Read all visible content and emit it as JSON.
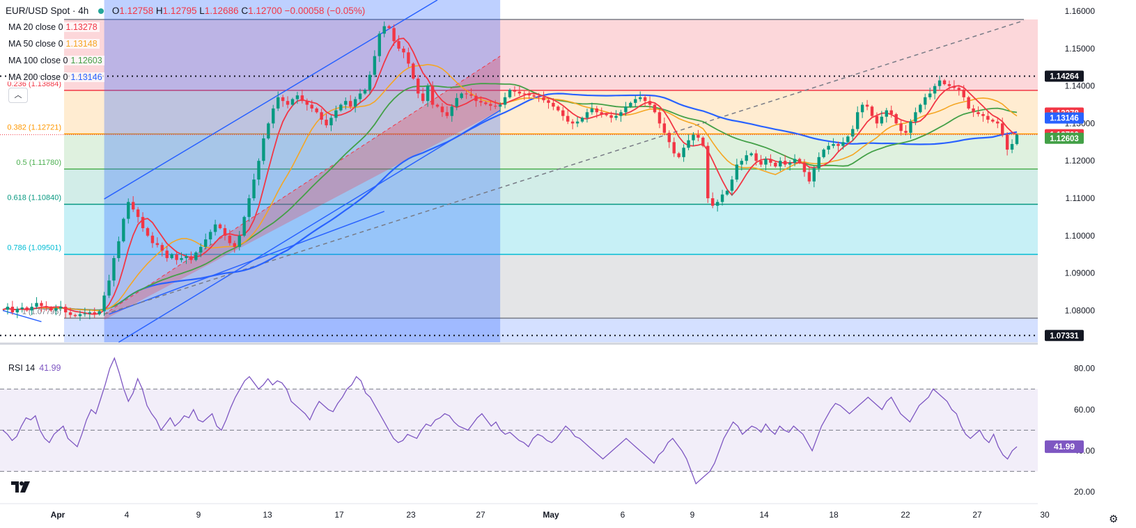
{
  "header": {
    "symbol": "EUR/USD Spot · 4h",
    "open_label": "O",
    "open": "1.12758",
    "high_label": "H",
    "high": "1.12795",
    "low_label": "L",
    "low": "1.12686",
    "close_label": "C",
    "close": "1.12700",
    "change": "−0.00058 (−0.05%)"
  },
  "legend": [
    {
      "label": "MA 20 close 0",
      "value": "1.13278",
      "color": "#f23645"
    },
    {
      "label": "MA 50 close 0",
      "value": "1.13148",
      "color": "#f5a623"
    },
    {
      "label": "MA 100 close 0",
      "value": "1.12603",
      "color": "#43a047"
    },
    {
      "label": "MA 200 close 0",
      "value": "1.13146",
      "color": "#2962ff"
    }
  ],
  "rsi_legend": {
    "label": "RSI 14",
    "value": "41.99"
  },
  "chart_data": [
    {
      "type": "candlestick",
      "title": "EUR/USD Spot · 4h",
      "ylim": [
        1.0715,
        1.163
      ],
      "y_ticks": [
        "1.08000",
        "1.09000",
        "1.10000",
        "1.11000",
        "1.12000",
        "1.13000",
        "1.14000",
        "1.15000",
        "1.16000"
      ],
      "x_ticks": [
        "Apr",
        "4",
        "9",
        "13",
        "17",
        "23",
        "27",
        "May",
        "6",
        "9",
        "14",
        "18",
        "22",
        "27",
        "30"
      ],
      "close_series": [
        1.0802,
        1.081,
        1.0795,
        1.0804,
        1.0808,
        1.08,
        1.081,
        1.082,
        1.0812,
        1.0808,
        1.08,
        1.0806,
        1.081,
        1.0795,
        1.0788,
        1.0785,
        1.079,
        1.0792,
        1.0795,
        1.079,
        1.0798,
        1.084,
        1.088,
        1.094,
        1.0985,
        1.1045,
        1.109,
        1.107,
        1.105,
        1.102,
        1.1,
        1.098,
        1.0975,
        1.096,
        1.094,
        1.095,
        1.0935,
        1.094,
        1.0945,
        1.0935,
        1.0955,
        1.097,
        1.099,
        1.101,
        1.103,
        1.102,
        1.1,
        1.098,
        1.097,
        1.1,
        1.105,
        1.11,
        1.115,
        1.12,
        1.126,
        1.13,
        1.134,
        1.137,
        1.136,
        1.135,
        1.1365,
        1.1375,
        1.136,
        1.135,
        1.134,
        1.133,
        1.131,
        1.1295,
        1.1315,
        1.1335,
        1.135,
        1.136,
        1.1345,
        1.1365,
        1.138,
        1.139,
        1.143,
        1.148,
        1.154,
        1.156,
        1.1555,
        1.152,
        1.15,
        1.149,
        1.146,
        1.142,
        1.138,
        1.136,
        1.14,
        1.135,
        1.1345,
        1.133,
        1.132,
        1.1345,
        1.1368,
        1.138,
        1.1378,
        1.1374,
        1.136,
        1.1356,
        1.1352,
        1.1347,
        1.1345,
        1.135,
        1.137,
        1.139,
        1.1385,
        1.138,
        1.1378,
        1.1375,
        1.1372,
        1.137,
        1.1362,
        1.1355,
        1.1345,
        1.1335,
        1.132,
        1.1305,
        1.13,
        1.1305,
        1.1315,
        1.133,
        1.134,
        1.133,
        1.1325,
        1.1322,
        1.1315,
        1.132,
        1.133,
        1.1345,
        1.1355,
        1.1365,
        1.137,
        1.136,
        1.135,
        1.133,
        1.13,
        1.1275,
        1.125,
        1.122,
        1.121,
        1.1235,
        1.1255,
        1.127,
        1.1262,
        1.124,
        1.11,
        1.108,
        1.109,
        1.111,
        1.112,
        1.115,
        1.119,
        1.12,
        1.1215,
        1.122,
        1.12,
        1.119,
        1.1205,
        1.1195,
        1.1185,
        1.12,
        1.119,
        1.1195,
        1.1205,
        1.1195,
        1.117,
        1.1145,
        1.118,
        1.121,
        1.123,
        1.124,
        1.1245,
        1.124,
        1.125,
        1.1265,
        1.1285,
        1.133,
        1.135,
        1.1345,
        1.132,
        1.13,
        1.1318,
        1.1335,
        1.1325,
        1.13,
        1.128,
        1.1275,
        1.1305,
        1.133,
        1.135,
        1.137,
        1.138,
        1.14,
        1.1415,
        1.1405,
        1.14,
        1.1395,
        1.139,
        1.137,
        1.134,
        1.133,
        1.1325,
        1.132,
        1.131,
        1.1305,
        1.13,
        1.127,
        1.123,
        1.1245,
        1.127
      ],
      "series": [
        {
          "name": "MA 20 close 0",
          "last": 1.13278
        },
        {
          "name": "MA 50 close 0",
          "last": 1.13148
        },
        {
          "name": "MA 100 close 0",
          "last": 1.12603
        },
        {
          "name": "MA 200 close 0",
          "last": 1.13146
        }
      ],
      "fibonacci": [
        {
          "label": "0.236 (1.13884)",
          "price": 1.13884,
          "color": "#f23645"
        },
        {
          "label": "0.382 (1.12721)",
          "price": 1.12721,
          "color": "#ff9800"
        },
        {
          "label": "0.5 (1.11780)",
          "price": 1.1178,
          "color": "#4caf50"
        },
        {
          "label": "0.618 (1.10840)",
          "price": 1.1084,
          "color": "#089981"
        },
        {
          "label": "0.786 (1.09501)",
          "price": 1.09501,
          "color": "#00bcd4"
        },
        {
          "label": "1 (1.07795)",
          "price": 1.07795,
          "color": "#787b86"
        }
      ],
      "fib_top": 1.1578,
      "dotted_levels": [
        {
          "label": "1.14264",
          "price": 1.14264
        },
        {
          "label": "1.07331",
          "price": 1.07331
        }
      ],
      "price_badges": [
        {
          "label": "1.14264",
          "price": 1.14264,
          "bg": "#131722",
          "fg": "#ffffff"
        },
        {
          "label": "1.13278",
          "price": 1.13278,
          "bg": "#f23645",
          "fg": "#ffffff"
        },
        {
          "label": "1.13148",
          "price": 1.13148,
          "bg": "#f5a623",
          "fg": "#131722"
        },
        {
          "label": "1.13146",
          "price": 1.13146,
          "bg": "#2962ff",
          "fg": "#ffffff"
        },
        {
          "label": "1.12700",
          "price": 1.127,
          "bg": "#f23645",
          "fg": "#ffffff"
        },
        {
          "label": "1.12603",
          "price": 1.12603,
          "bg": "#43a047",
          "fg": "#ffffff"
        },
        {
          "label": "1.07331",
          "price": 1.07331,
          "bg": "#131722",
          "fg": "#ffffff"
        }
      ]
    },
    {
      "type": "line",
      "title": "RSI 14",
      "ylim": [
        15,
        90
      ],
      "y_ticks": [
        "20.00",
        "40.00",
        "60.00",
        "80.00"
      ],
      "levels": [
        70,
        50,
        30
      ],
      "values": [
        50,
        48,
        45,
        47,
        52,
        56,
        55,
        57,
        50,
        46,
        44,
        48,
        50,
        52,
        46,
        44,
        42,
        48,
        55,
        60,
        58,
        65,
        72,
        80,
        85,
        78,
        70,
        64,
        68,
        75,
        70,
        62,
        58,
        55,
        50,
        53,
        56,
        52,
        54,
        57,
        56,
        60,
        55,
        54,
        56,
        58,
        52,
        50,
        55,
        61,
        66,
        70,
        74,
        76,
        73,
        70,
        72,
        75,
        72,
        74,
        73,
        70,
        64,
        62,
        60,
        58,
        55,
        60,
        64,
        62,
        60,
        59,
        63,
        66,
        70,
        72,
        76,
        74,
        68,
        66,
        62,
        58,
        54,
        50,
        46,
        44,
        45,
        48,
        47,
        46,
        50,
        53,
        52,
        55,
        56,
        58,
        57,
        54,
        52,
        51,
        50,
        53,
        56,
        58,
        55,
        52,
        54,
        50,
        48,
        49,
        47,
        45,
        44,
        42,
        46,
        48,
        47,
        45,
        44,
        46,
        49,
        52,
        50,
        47,
        46,
        44,
        42,
        40,
        38,
        36,
        38,
        40,
        42,
        44,
        46,
        44,
        42,
        40,
        38,
        36,
        34,
        38,
        40,
        44,
        46,
        43,
        40,
        36,
        30,
        24,
        26,
        28,
        30,
        34,
        40,
        46,
        50,
        54,
        52,
        48,
        50,
        52,
        51,
        49,
        53,
        50,
        48,
        52,
        50,
        49,
        52,
        50,
        48,
        44,
        40,
        46,
        52,
        56,
        60,
        63,
        62,
        60,
        58,
        60,
        62,
        64,
        66,
        64,
        62,
        60,
        64,
        66,
        62,
        58,
        56,
        54,
        58,
        62,
        64,
        66,
        70,
        68,
        66,
        64,
        60,
        58,
        52,
        48,
        46,
        48,
        50,
        46,
        44,
        48,
        42,
        38,
        36,
        40,
        42
      ]
    }
  ]
}
